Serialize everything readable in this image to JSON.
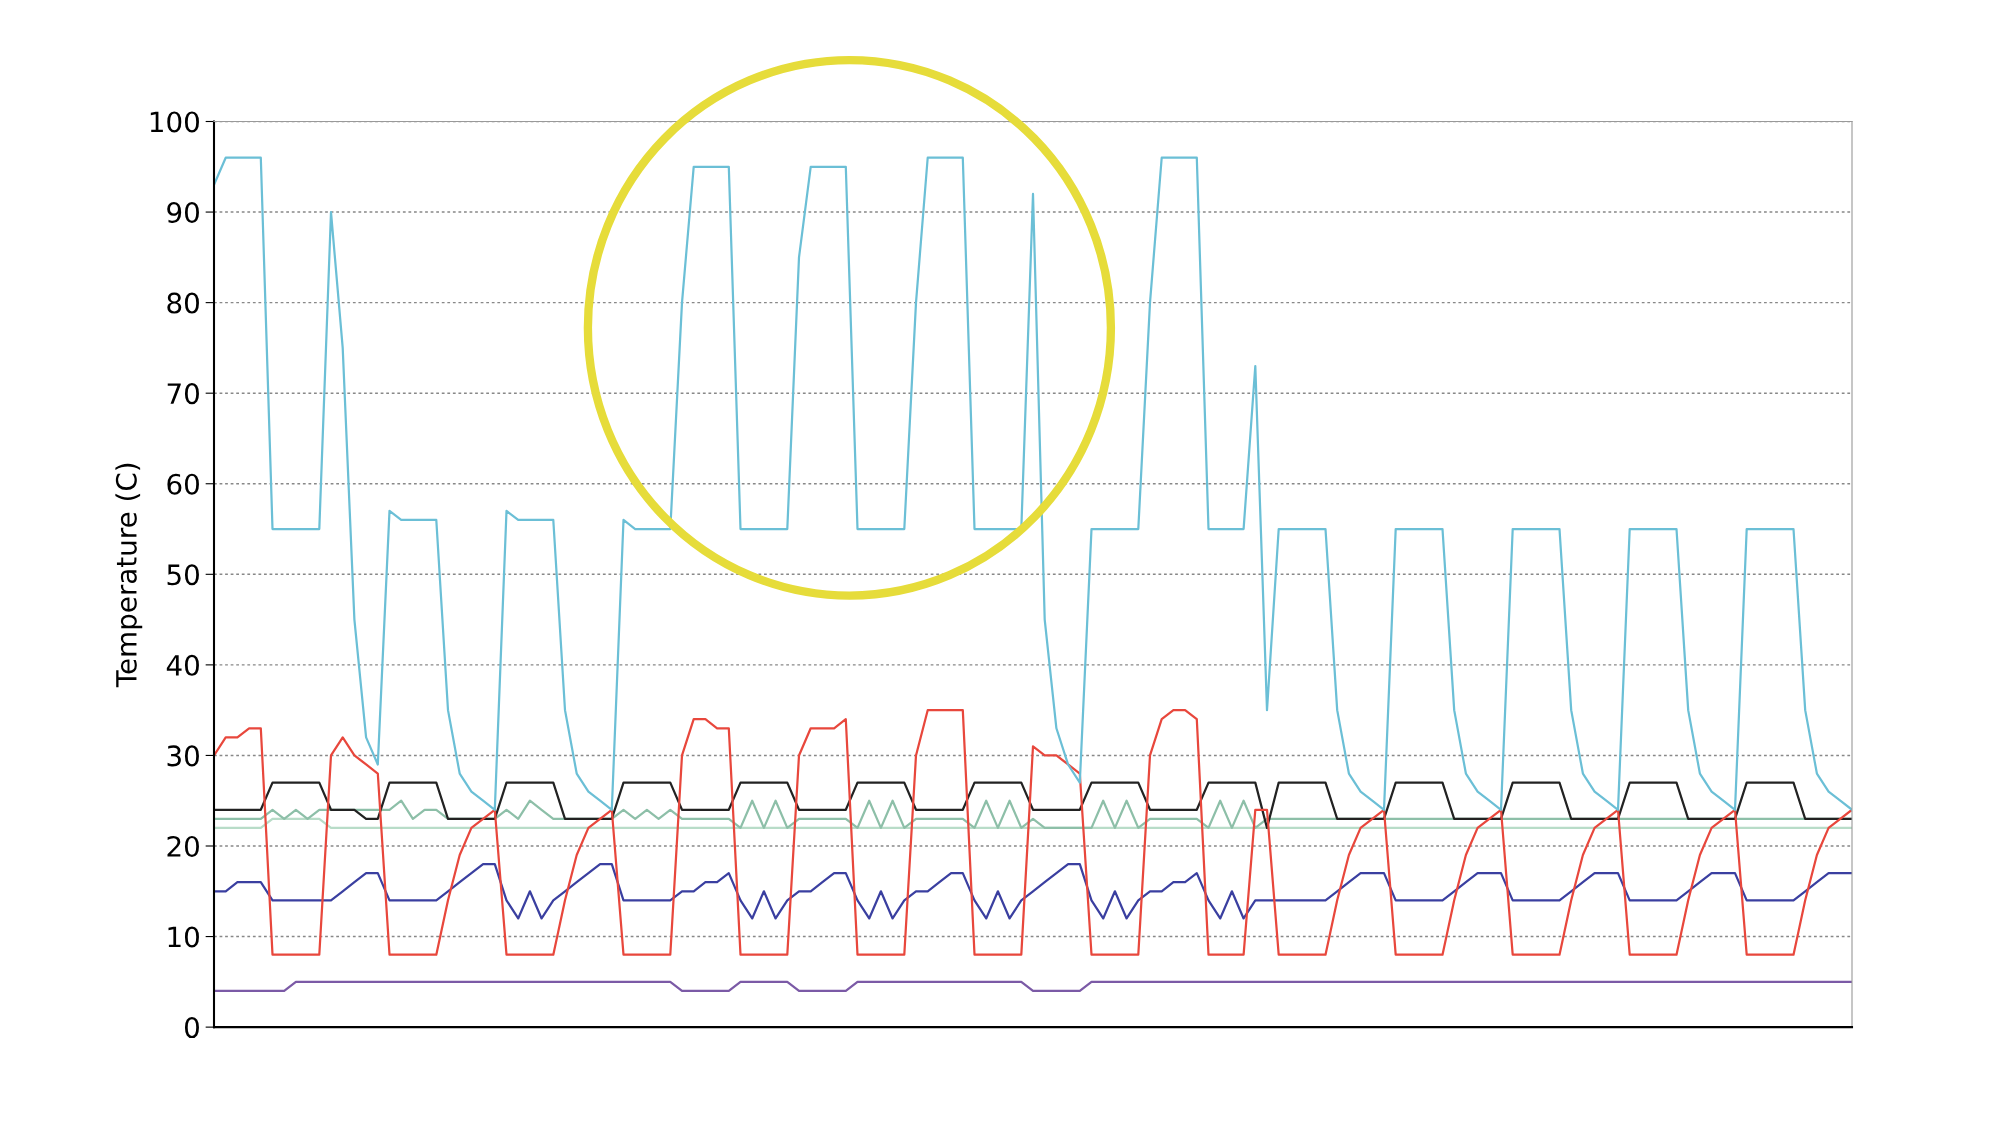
{
  "chart_data": {
    "type": "line",
    "ylabel": "Temperature (C)",
    "ylim": [
      0,
      100
    ],
    "yticks": [
      0,
      10,
      20,
      30,
      40,
      50,
      60,
      70,
      80,
      90,
      100
    ],
    "grid": "y",
    "legend": false,
    "marker": "none",
    "line_style": "solid",
    "categories": [
      null,
      null,
      null,
      null,
      null,
      null,
      null,
      null,
      null,
      null,
      null,
      null,
      null,
      null,
      null,
      null,
      null,
      null,
      null,
      null,
      null,
      null,
      null,
      null,
      null,
      null,
      null,
      null,
      null,
      null,
      null,
      null,
      null,
      null,
      null,
      null,
      null,
      null,
      null,
      null,
      null,
      null,
      null,
      null,
      null,
      null,
      null,
      null,
      null,
      null,
      null,
      null,
      null,
      null,
      null,
      null,
      null,
      null,
      null,
      null,
      null,
      null,
      null,
      null,
      null,
      null,
      null,
      null,
      null,
      null,
      null,
      null,
      null,
      null,
      null,
      null,
      null,
      null,
      null,
      null,
      null,
      null,
      null,
      null,
      null,
      null,
      null,
      null,
      null,
      null,
      null,
      null,
      null,
      null,
      null,
      null,
      null,
      null,
      null,
      null,
      null,
      null,
      null,
      null,
      null,
      null,
      null,
      null,
      null,
      null,
      null,
      null,
      null,
      null,
      null,
      null,
      null,
      null,
      null,
      null,
      null,
      null,
      null,
      null,
      null,
      null,
      null,
      null,
      null,
      null,
      null,
      null,
      null,
      null,
      null,
      null,
      null,
      null,
      null,
      null,
      null
    ],
    "series": [
      {
        "color": "#b8dcc8",
        "values": [
          22,
          22,
          22,
          22,
          22,
          23,
          23,
          23,
          23,
          23,
          22,
          22,
          22,
          22,
          22,
          22,
          22,
          22,
          22,
          22,
          22,
          22,
          22,
          22,
          22,
          22,
          22,
          22,
          22,
          22,
          22,
          22,
          22,
          22,
          22,
          22,
          22,
          22,
          22,
          22,
          22,
          22,
          22,
          22,
          22,
          22,
          22,
          22,
          22,
          22,
          22,
          22,
          22,
          22,
          22,
          22,
          22,
          22,
          22,
          22,
          22,
          22,
          22,
          22,
          22,
          22,
          22,
          22,
          22,
          22,
          22,
          22,
          22,
          22,
          22,
          22,
          22,
          22,
          22,
          22,
          22,
          22,
          22,
          22,
          22,
          22,
          22,
          22,
          22,
          22,
          22,
          22,
          22,
          22,
          22,
          22,
          22,
          22,
          22,
          22,
          22,
          22,
          22,
          22,
          22,
          22,
          22,
          22,
          22,
          22,
          22,
          22,
          22,
          22,
          22,
          22,
          22,
          22,
          22,
          22,
          22,
          22,
          22,
          22,
          22,
          22,
          22,
          22,
          22,
          22,
          22,
          22,
          22,
          22,
          22,
          22,
          22,
          22,
          22,
          22,
          22
        ]
      },
      {
        "color": "#8dbfa8",
        "values": [
          23,
          23,
          23,
          23,
          23,
          24,
          23,
          24,
          23,
          24,
          24,
          24,
          24,
          24,
          24,
          24,
          25,
          23,
          24,
          24,
          23,
          23,
          23,
          23,
          23,
          24,
          23,
          25,
          24,
          23,
          23,
          23,
          23,
          23,
          23,
          24,
          23,
          24,
          23,
          24,
          23,
          23,
          23,
          23,
          23,
          22,
          25,
          22,
          25,
          22,
          23,
          23,
          23,
          23,
          23,
          22,
          25,
          22,
          25,
          22,
          23,
          23,
          23,
          23,
          23,
          22,
          25,
          22,
          25,
          22,
          23,
          22,
          22,
          22,
          22,
          22,
          25,
          22,
          25,
          22,
          23,
          23,
          23,
          23,
          23,
          22,
          25,
          22,
          25,
          22,
          23,
          23,
          23,
          23,
          23,
          23,
          23,
          23,
          23,
          23,
          23,
          23,
          23,
          23,
          23,
          23,
          23,
          23,
          23,
          23,
          23,
          23,
          23,
          23,
          23,
          23,
          23,
          23,
          23,
          23,
          23,
          23,
          23,
          23,
          23,
          23,
          23,
          23,
          23,
          23,
          23,
          23,
          23,
          23,
          23,
          23,
          23,
          23,
          23,
          23,
          23
        ]
      },
      {
        "color": "#7b5aa6",
        "values": [
          4,
          4,
          4,
          4,
          4,
          4,
          4,
          5,
          5,
          5,
          5,
          5,
          5,
          5,
          5,
          5,
          5,
          5,
          5,
          5,
          5,
          5,
          5,
          5,
          5,
          5,
          5,
          5,
          5,
          5,
          5,
          5,
          5,
          5,
          5,
          5,
          5,
          5,
          5,
          5,
          4,
          4,
          4,
          4,
          4,
          5,
          5,
          5,
          5,
          5,
          4,
          4,
          4,
          4,
          4,
          5,
          5,
          5,
          5,
          5,
          5,
          5,
          5,
          5,
          5,
          5,
          5,
          5,
          5,
          5,
          4,
          4,
          4,
          4,
          4,
          5,
          5,
          5,
          5,
          5,
          5,
          5,
          5,
          5,
          5,
          5,
          5,
          5,
          5,
          5,
          5,
          5,
          5,
          5,
          5,
          5,
          5,
          5,
          5,
          5,
          5,
          5,
          5,
          5,
          5,
          5,
          5,
          5,
          5,
          5,
          5,
          5,
          5,
          5,
          5,
          5,
          5,
          5,
          5,
          5,
          5,
          5,
          5,
          5,
          5,
          5,
          5,
          5,
          5,
          5,
          5,
          5,
          5,
          5,
          5,
          5,
          5,
          5,
          5,
          5,
          5
        ]
      },
      {
        "color": "#3a3fa0",
        "values": [
          15,
          15,
          16,
          16,
          16,
          14,
          14,
          14,
          14,
          14,
          14,
          15,
          16,
          17,
          17,
          14,
          14,
          14,
          14,
          14,
          15,
          16,
          17,
          18,
          18,
          14,
          12,
          15,
          12,
          14,
          15,
          16,
          17,
          18,
          18,
          14,
          14,
          14,
          14,
          14,
          15,
          15,
          16,
          16,
          17,
          14,
          12,
          15,
          12,
          14,
          15,
          15,
          16,
          17,
          17,
          14,
          12,
          15,
          12,
          14,
          15,
          15,
          16,
          17,
          17,
          14,
          12,
          15,
          12,
          14,
          15,
          16,
          17,
          18,
          18,
          14,
          12,
          15,
          12,
          14,
          15,
          15,
          16,
          16,
          17,
          14,
          12,
          15,
          12,
          14,
          14,
          14,
          14,
          14,
          14,
          14,
          15,
          16,
          17,
          17,
          17,
          14,
          14,
          14,
          14,
          14,
          15,
          16,
          17,
          17,
          17,
          14,
          14,
          14,
          14,
          14,
          15,
          16,
          17,
          17,
          17,
          14,
          14,
          14,
          14,
          14,
          15,
          16,
          17,
          17,
          17,
          14,
          14,
          14,
          14,
          14,
          15,
          16,
          17,
          17,
          17
        ]
      },
      {
        "color": "#222222",
        "values": [
          24,
          24,
          24,
          24,
          24,
          27,
          27,
          27,
          27,
          27,
          24,
          24,
          24,
          23,
          23,
          27,
          27,
          27,
          27,
          27,
          23,
          23,
          23,
          23,
          23,
          27,
          27,
          27,
          27,
          27,
          23,
          23,
          23,
          23,
          23,
          27,
          27,
          27,
          27,
          27,
          24,
          24,
          24,
          24,
          24,
          27,
          27,
          27,
          27,
          27,
          24,
          24,
          24,
          24,
          24,
          27,
          27,
          27,
          27,
          27,
          24,
          24,
          24,
          24,
          24,
          27,
          27,
          27,
          27,
          27,
          24,
          24,
          24,
          24,
          24,
          27,
          27,
          27,
          27,
          27,
          24,
          24,
          24,
          24,
          24,
          27,
          27,
          27,
          27,
          27,
          22,
          27,
          27,
          27,
          27,
          27,
          23,
          23,
          23,
          23,
          23,
          27,
          27,
          27,
          27,
          27,
          23,
          23,
          23,
          23,
          23,
          27,
          27,
          27,
          27,
          27,
          23,
          23,
          23,
          23,
          23,
          27,
          27,
          27,
          27,
          27,
          23,
          23,
          23,
          23,
          23,
          27,
          27,
          27,
          27,
          27,
          23,
          23,
          23,
          23,
          23
        ]
      },
      {
        "color": "#e8473c",
        "values": [
          30,
          32,
          32,
          33,
          33,
          8,
          8,
          8,
          8,
          8,
          30,
          32,
          30,
          29,
          28,
          8,
          8,
          8,
          8,
          8,
          14,
          19,
          22,
          23,
          24,
          8,
          8,
          8,
          8,
          8,
          14,
          19,
          22,
          23,
          24,
          8,
          8,
          8,
          8,
          8,
          30,
          34,
          34,
          33,
          33,
          8,
          8,
          8,
          8,
          8,
          30,
          33,
          33,
          33,
          34,
          8,
          8,
          8,
          8,
          8,
          30,
          35,
          35,
          35,
          35,
          8,
          8,
          8,
          8,
          8,
          31,
          30,
          30,
          29,
          28,
          8,
          8,
          8,
          8,
          8,
          30,
          34,
          35,
          35,
          34,
          8,
          8,
          8,
          8,
          24,
          24,
          8,
          8,
          8,
          8,
          8,
          14,
          19,
          22,
          23,
          24,
          8,
          8,
          8,
          8,
          8,
          14,
          19,
          22,
          23,
          24,
          8,
          8,
          8,
          8,
          8,
          14,
          19,
          22,
          23,
          24,
          8,
          8,
          8,
          8,
          8,
          14,
          19,
          22,
          23,
          24,
          8,
          8,
          8,
          8,
          8,
          14,
          19,
          22,
          23,
          24
        ]
      },
      {
        "color": "#6bbfd6",
        "values": [
          93,
          96,
          96,
          96,
          96,
          55,
          55,
          55,
          55,
          55,
          90,
          75,
          45,
          32,
          29,
          57,
          56,
          56,
          56,
          56,
          35,
          28,
          26,
          25,
          24,
          57,
          56,
          56,
          56,
          56,
          35,
          28,
          26,
          25,
          24,
          56,
          55,
          55,
          55,
          55,
          80,
          95,
          95,
          95,
          95,
          55,
          55,
          55,
          55,
          55,
          85,
          95,
          95,
          95,
          95,
          55,
          55,
          55,
          55,
          55,
          80,
          96,
          96,
          96,
          96,
          55,
          55,
          55,
          55,
          55,
          92,
          45,
          33,
          29,
          27,
          55,
          55,
          55,
          55,
          55,
          80,
          96,
          96,
          96,
          96,
          55,
          55,
          55,
          55,
          73,
          35,
          55,
          55,
          55,
          55,
          55,
          35,
          28,
          26,
          25,
          24,
          55,
          55,
          55,
          55,
          55,
          35,
          28,
          26,
          25,
          24,
          55,
          55,
          55,
          55,
          55,
          35,
          28,
          26,
          25,
          24,
          55,
          55,
          55,
          55,
          55,
          35,
          28,
          26,
          25,
          24,
          55,
          55,
          55,
          55,
          55,
          35,
          28,
          26,
          25,
          24
        ]
      }
    ]
  }
}
